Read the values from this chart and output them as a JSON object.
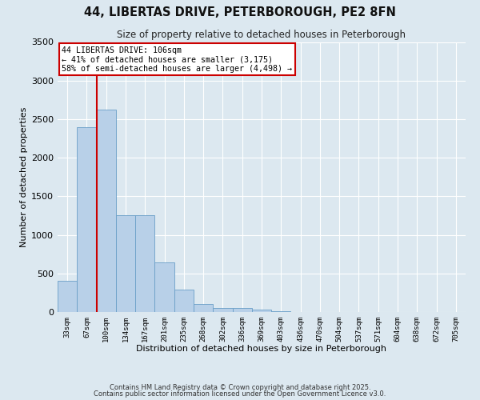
{
  "title": "44, LIBERTAS DRIVE, PETERBOROUGH, PE2 8FN",
  "subtitle": "Size of property relative to detached houses in Peterborough",
  "xlabel": "Distribution of detached houses by size in Peterborough",
  "ylabel": "Number of detached properties",
  "categories": [
    "33sqm",
    "67sqm",
    "100sqm",
    "134sqm",
    "167sqm",
    "201sqm",
    "235sqm",
    "268sqm",
    "302sqm",
    "336sqm",
    "369sqm",
    "403sqm",
    "436sqm",
    "470sqm",
    "504sqm",
    "537sqm",
    "571sqm",
    "604sqm",
    "638sqm",
    "672sqm",
    "705sqm"
  ],
  "values": [
    400,
    2400,
    2620,
    1250,
    1250,
    640,
    290,
    100,
    55,
    55,
    35,
    10,
    5,
    3,
    2,
    1,
    0,
    0,
    0,
    0,
    0
  ],
  "bar_color": "#b8d0e8",
  "bar_edge_color": "#6a9fc8",
  "property_line_index": 2,
  "annotation_line1": "44 LIBERTAS DRIVE: 106sqm",
  "annotation_line2": "← 41% of detached houses are smaller (3,175)",
  "annotation_line3": "58% of semi-detached houses are larger (4,498) →",
  "vline_color": "#cc0000",
  "annotation_box_color": "#ffffff",
  "annotation_box_edge": "#cc0000",
  "ylim": [
    0,
    3500
  ],
  "yticks": [
    0,
    500,
    1000,
    1500,
    2000,
    2500,
    3000,
    3500
  ],
  "fig_bg_color": "#dce8f0",
  "plot_bg_color": "#dce8f0",
  "grid_color": "#ffffff",
  "footer1": "Contains HM Land Registry data © Crown copyright and database right 2025.",
  "footer2": "Contains public sector information licensed under the Open Government Licence v3.0."
}
